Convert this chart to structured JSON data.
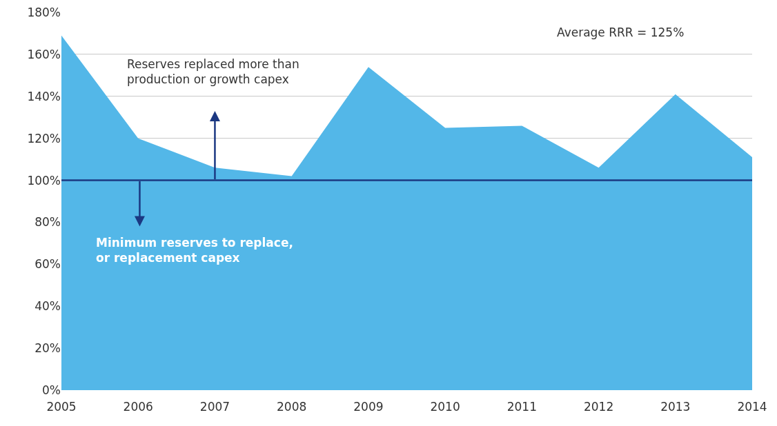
{
  "chart_data": {
    "type": "area",
    "x": [
      2005,
      2006,
      2007,
      2008,
      2009,
      2010,
      2011,
      2012,
      2013,
      2014
    ],
    "series": [
      {
        "color": "#53b7e8",
        "values": [
          169,
          120,
          106,
          102,
          154,
          125,
          126,
          106,
          141,
          111
        ]
      }
    ],
    "xlim": [
      2005,
      2014
    ],
    "xticks": [
      2005,
      2006,
      2007,
      2008,
      2009,
      2010,
      2011,
      2012,
      2013,
      2014
    ],
    "ylim": [
      0,
      180
    ],
    "yticks": [
      {
        "value": 0,
        "label": "0%"
      },
      {
        "value": 20,
        "label": "20%"
      },
      {
        "value": 40,
        "label": "40%"
      },
      {
        "value": 60,
        "label": "60%"
      },
      {
        "value": 80,
        "label": "80%"
      },
      {
        "value": 100,
        "label": "100%"
      },
      {
        "value": 120,
        "label": "120%"
      },
      {
        "value": 140,
        "label": "140%"
      },
      {
        "value": 160,
        "label": "160%"
      },
      {
        "value": 180,
        "label": "180%"
      }
    ],
    "grid": "y",
    "legend": false,
    "ref_lines": [
      {
        "axis": "y",
        "value": 100,
        "color": "#1b3882"
      }
    ],
    "annotations": [
      "Average RRR = 125%",
      "Reserves replaced more than\nproduction or growth capex",
      "Minimum reserves to replace,\nor replacement capex"
    ]
  }
}
